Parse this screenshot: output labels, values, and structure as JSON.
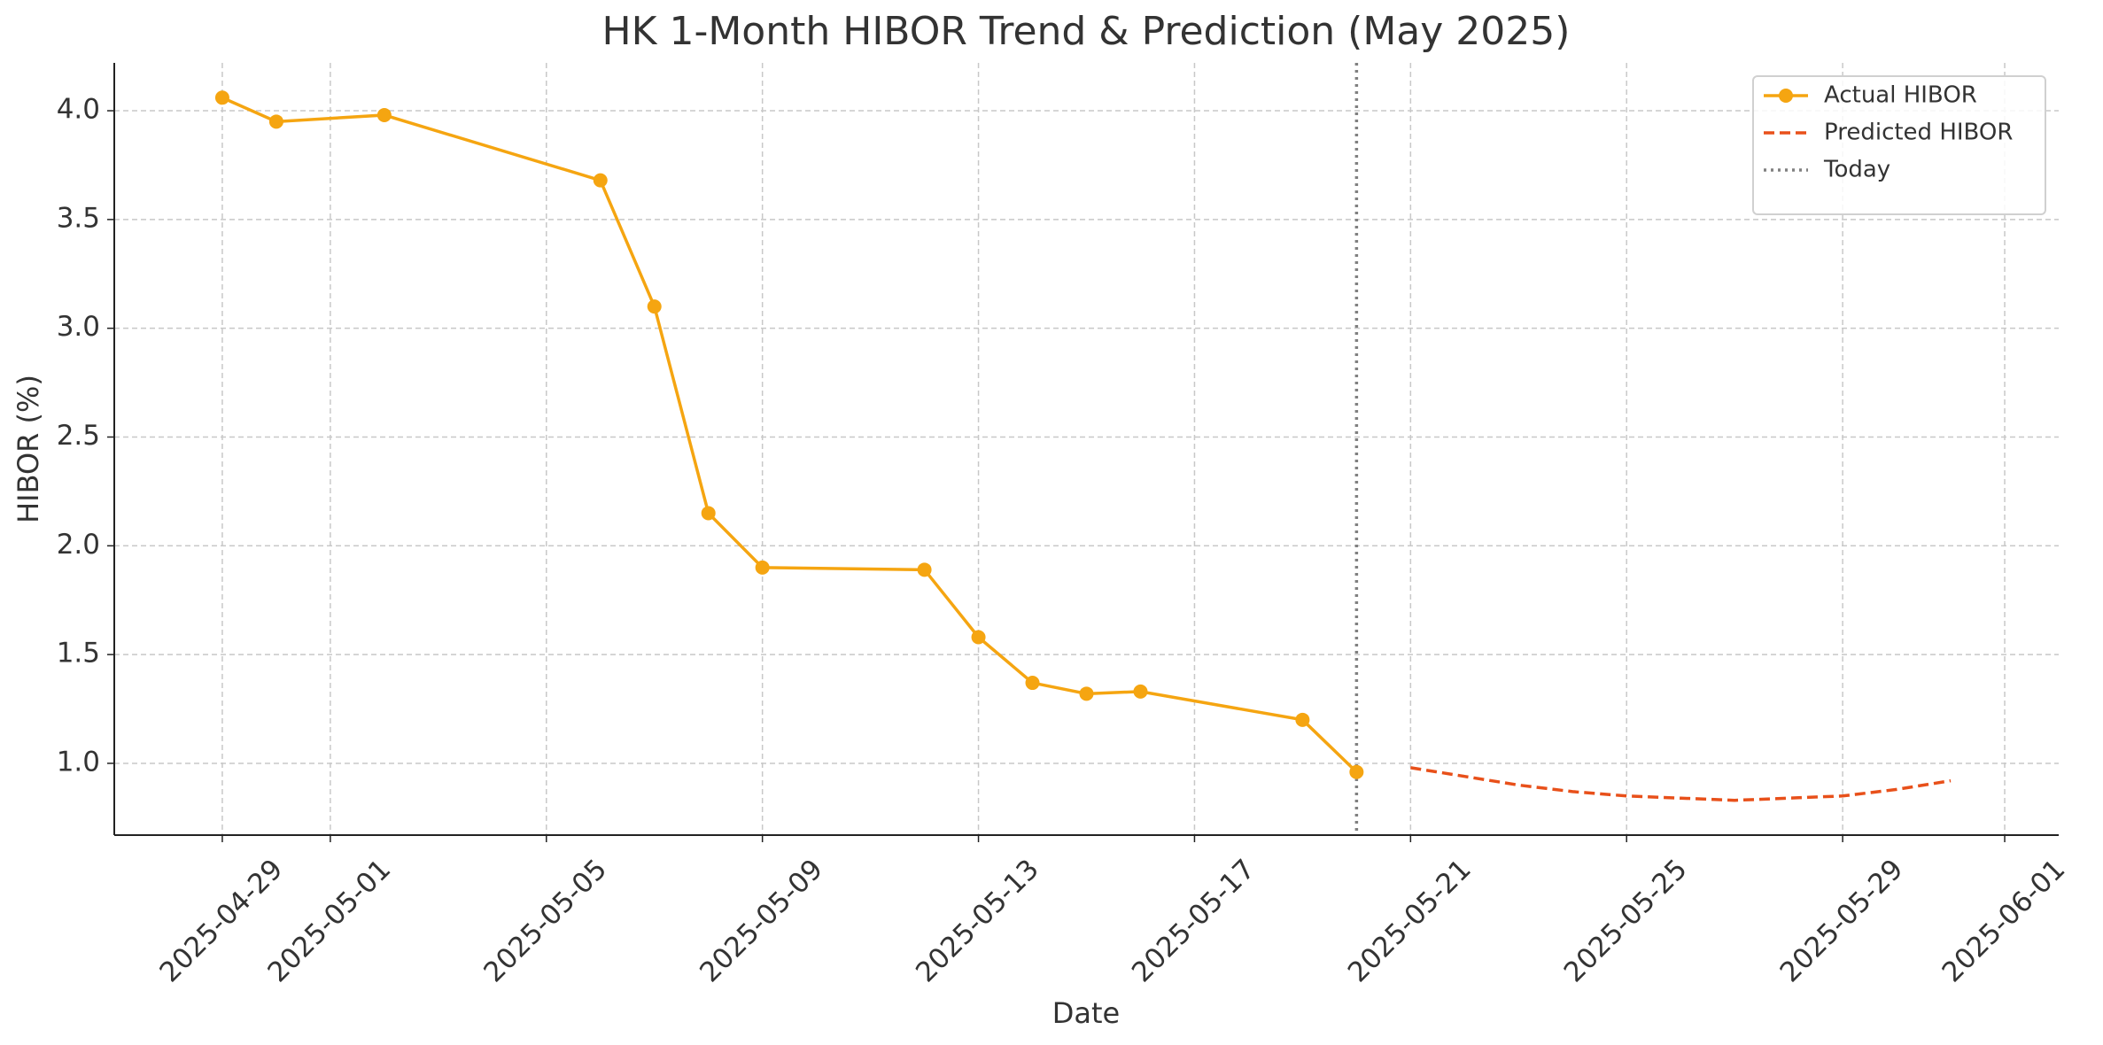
{
  "chart_data": {
    "type": "line",
    "title": "HK 1-Month HIBOR Trend & Prediction (May 2025)",
    "x_label": "Date",
    "y_label": "HIBOR (%)",
    "series": [
      {
        "name": "Actual HIBOR",
        "color": "#f5a511",
        "style": "solid",
        "marker": true,
        "x": [
          "2025-04-29",
          "2025-04-30",
          "2025-05-02",
          "2025-05-06",
          "2025-05-07",
          "2025-05-08",
          "2025-05-09",
          "2025-05-12",
          "2025-05-13",
          "2025-05-14",
          "2025-05-15",
          "2025-05-16",
          "2025-05-19",
          "2025-05-20"
        ],
        "values": [
          4.06,
          3.95,
          3.98,
          3.68,
          3.1,
          2.15,
          1.9,
          1.89,
          1.58,
          1.37,
          1.32,
          1.33,
          1.2,
          0.96
        ]
      },
      {
        "name": "Predicted HIBOR",
        "color": "#e8501a",
        "style": "dashed",
        "marker": false,
        "x": [
          "2025-05-21",
          "2025-05-22",
          "2025-05-23",
          "2025-05-24",
          "2025-05-25",
          "2025-05-26",
          "2025-05-27",
          "2025-05-28",
          "2025-05-29",
          "2025-05-30",
          "2025-05-31"
        ],
        "values": [
          0.98,
          0.94,
          0.9,
          0.87,
          0.85,
          0.84,
          0.83,
          0.84,
          0.85,
          0.88,
          0.92
        ]
      }
    ],
    "vlines": [
      {
        "name": "Today",
        "x": "2025-05-20",
        "color": "#808080",
        "style": "dotted"
      }
    ],
    "xlim": [
      "2025-04-27",
      "2025-06-02"
    ],
    "xticks": [
      "2025-04-29",
      "2025-05-01",
      "2025-05-05",
      "2025-05-09",
      "2025-05-13",
      "2025-05-17",
      "2025-05-21",
      "2025-05-25",
      "2025-05-29",
      "2025-06-01"
    ],
    "ylim": [
      0.67,
      4.22
    ],
    "yticks": [
      {
        "value": 1,
        "label": "1.0"
      },
      1.5,
      {
        "value": 2,
        "label": "2.0"
      },
      2.5,
      {
        "value": 3,
        "label": "3.0"
      },
      3.5,
      {
        "value": 4,
        "label": "4.0"
      }
    ],
    "grid": true,
    "legend": "upper-right"
  }
}
